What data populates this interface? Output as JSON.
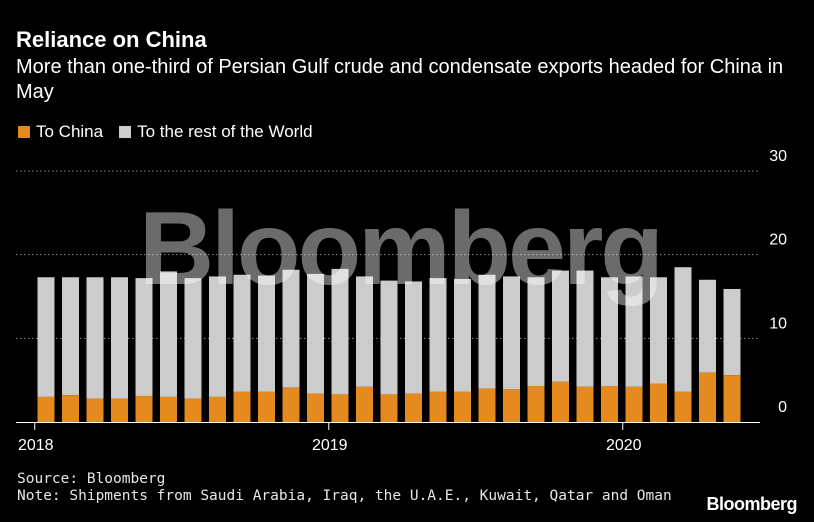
{
  "title": "Reliance on China",
  "subtitle": "More than one-third of Persian Gulf crude and condensate exports headed for China in May",
  "legend": [
    {
      "label": "To China",
      "color": "#e58a1f"
    },
    {
      "label": "To the rest of the World",
      "color": "#cccccc"
    }
  ],
  "source": "Source: Bloomberg",
  "note": "Note: Shipments from Saudi Arabia, Iraq, the U.A.E., Kuwait, Qatar and Oman",
  "watermark": "Bloomberg",
  "footer_logo": "Bloomberg",
  "chart_data": {
    "type": "bar",
    "stacked": true,
    "x": [
      "2018-01",
      "2018-02",
      "2018-03",
      "2018-04",
      "2018-05",
      "2018-06",
      "2018-07",
      "2018-08",
      "2018-09",
      "2018-10",
      "2018-11",
      "2018-12",
      "2019-01",
      "2019-02",
      "2019-03",
      "2019-04",
      "2019-05",
      "2019-06",
      "2019-07",
      "2019-08",
      "2019-09",
      "2019-10",
      "2019-11",
      "2019-12",
      "2020-01",
      "2020-02",
      "2020-03",
      "2020-04",
      "2020-05"
    ],
    "x_tick_labels": [
      {
        "x": "2018-01",
        "label": "2018"
      },
      {
        "x": "2019-01",
        "label": "2019"
      },
      {
        "x": "2020-01",
        "label": "2020"
      }
    ],
    "series": [
      {
        "name": "To China",
        "color": "#e58a1f",
        "values": [
          3.0,
          3.2,
          2.8,
          2.8,
          3.1,
          3.0,
          2.8,
          3.0,
          3.6,
          3.6,
          4.1,
          3.4,
          3.3,
          4.2,
          3.3,
          3.4,
          3.6,
          3.6,
          4.0,
          3.9,
          4.3,
          4.8,
          4.2,
          4.3,
          4.2,
          4.6,
          3.6,
          5.9,
          5.6
        ]
      },
      {
        "name": "To the rest of the World",
        "color": "#cccccc",
        "values": [
          14.3,
          14.1,
          14.5,
          14.5,
          14.1,
          15.0,
          14.4,
          14.4,
          14.0,
          13.9,
          14.1,
          14.3,
          15.0,
          13.2,
          13.6,
          13.4,
          13.6,
          13.5,
          13.6,
          13.5,
          13.0,
          13.3,
          13.9,
          13.0,
          13.2,
          12.7,
          14.9,
          11.1,
          10.3
        ]
      }
    ],
    "ylim": [
      0,
      30
    ],
    "yticks": [
      0,
      10,
      20,
      30
    ],
    "grid": true,
    "legend_position": "top-left"
  }
}
